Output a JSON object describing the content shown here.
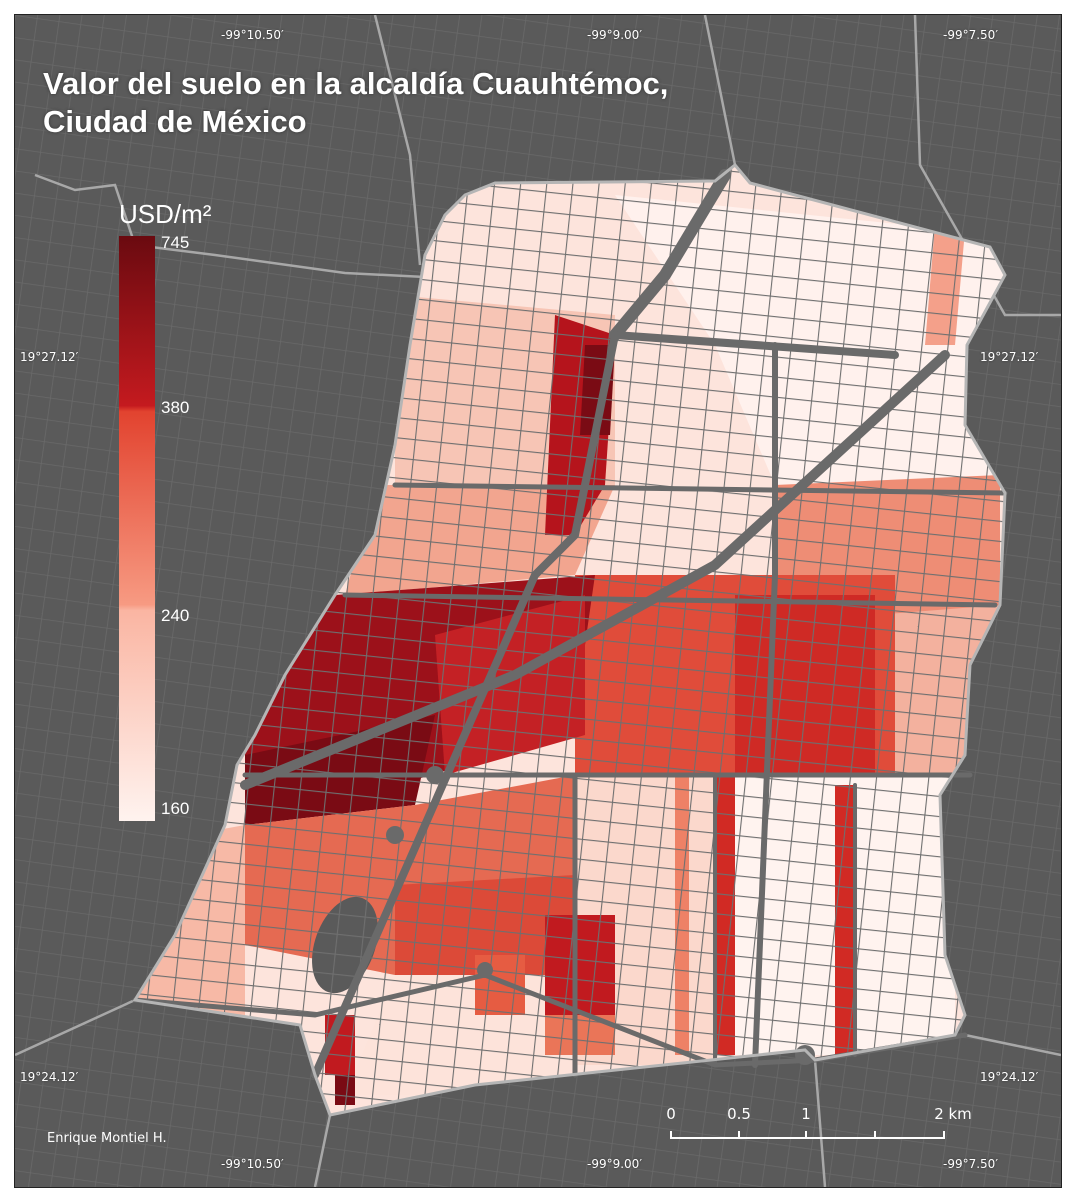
{
  "map": {
    "title_line1": "Valor del suelo en la alcaldía Cuauhtémoc,",
    "title_line2": "Ciudad de México",
    "author": "Enrique Montiel H.",
    "colors": {
      "background": "#5a5a5a",
      "streets": "#6c6c6c",
      "boundary": "#b5b5b5",
      "low": "#fff0ec",
      "mid": "#f7836b",
      "high": "#7a0b14"
    }
  },
  "grid": {
    "lon_top": [
      "-99°10.50′",
      "-99°9.00′",
      "-99°7.50′"
    ],
    "lon_bottom": [
      "-99°10.50′",
      "-99°9.00′",
      "-99°7.50′"
    ],
    "lat_left": [
      "19°27.12′",
      "19°24.12′"
    ],
    "lat_right": [
      "19°27.12′",
      "19°24.12′"
    ]
  },
  "legend": {
    "title": "USD/m²",
    "labels": [
      "745",
      "380",
      "240",
      "160"
    ],
    "values": [
      745,
      380,
      240,
      160
    ]
  },
  "scale_bar": {
    "labels": [
      "0",
      "0.5",
      "1",
      "2 km"
    ],
    "km": [
      0,
      0.5,
      1,
      2
    ]
  }
}
